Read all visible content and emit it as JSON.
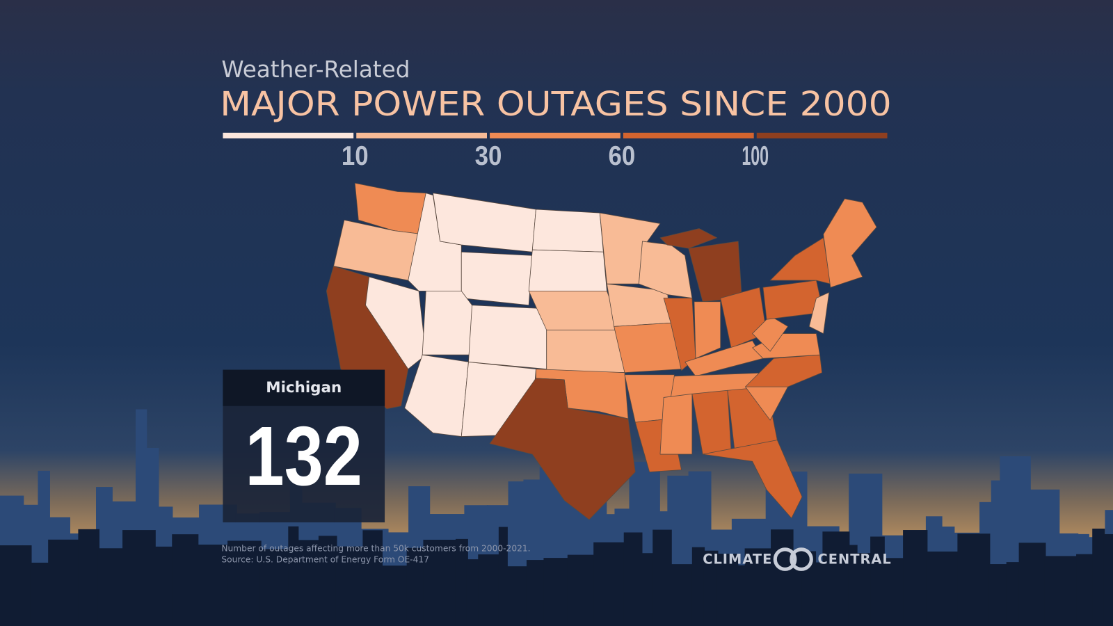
{
  "subtitle": "Weather-Related",
  "title": "MAJOR POWER OUTAGES SINCE 2000",
  "legend": {
    "breaks": [
      10,
      30,
      60,
      100
    ],
    "colors": [
      "#fde7dd",
      "#f8bb96",
      "#ef8b54",
      "#d3642f",
      "#8f3f1f"
    ]
  },
  "callout": {
    "state": "Michigan",
    "value": 132
  },
  "footnotes": [
    "Number of outages affecting more than 50k customers from 2000-2021.",
    "Source: U.S. Department of Energy Form OE-417"
  ],
  "logo": [
    "CLIMATE",
    "CENTRAL"
  ]
}
